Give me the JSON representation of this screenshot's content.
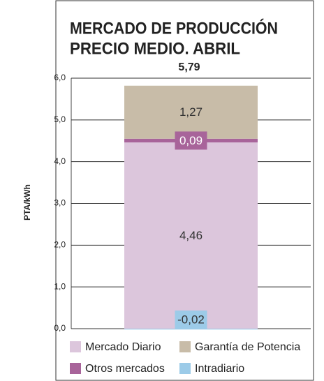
{
  "chart_data": {
    "type": "stacked_bar",
    "title": "MERCADO DE PRODUCCIÓN",
    "subtitle": "PRECIO MEDIO. ABRIL",
    "total": {
      "value": 5.79,
      "label": "5,79"
    },
    "y_label": "PTA/kWh",
    "ylim": [
      0,
      6
    ],
    "yticks": [
      {
        "value": 0,
        "label": "0,0"
      },
      {
        "value": 1,
        "label": "1,0"
      },
      {
        "value": 2,
        "label": "2,0"
      },
      {
        "value": 3,
        "label": "3,0"
      },
      {
        "value": 4,
        "label": "4,0"
      },
      {
        "value": 5,
        "label": "5,0"
      },
      {
        "value": 6,
        "label": "6,0"
      }
    ],
    "grid": true,
    "series": [
      {
        "name": "Mercado Diario",
        "color": "#dcc6dc",
        "values": [
          4.46
        ],
        "value_labels": [
          "4,46"
        ]
      },
      {
        "name": "Otros mercados",
        "color": "#a8649a",
        "values": [
          0.09
        ],
        "value_labels": [
          "0,09"
        ]
      },
      {
        "name": "Garantía de Potencia",
        "color": "#c8bca8",
        "values": [
          1.27
        ],
        "value_labels": [
          "1,27"
        ]
      },
      {
        "name": "Intradiario",
        "color": "#9ccbe8",
        "values": [
          -0.02
        ],
        "value_labels": [
          "-0,02"
        ]
      }
    ]
  }
}
